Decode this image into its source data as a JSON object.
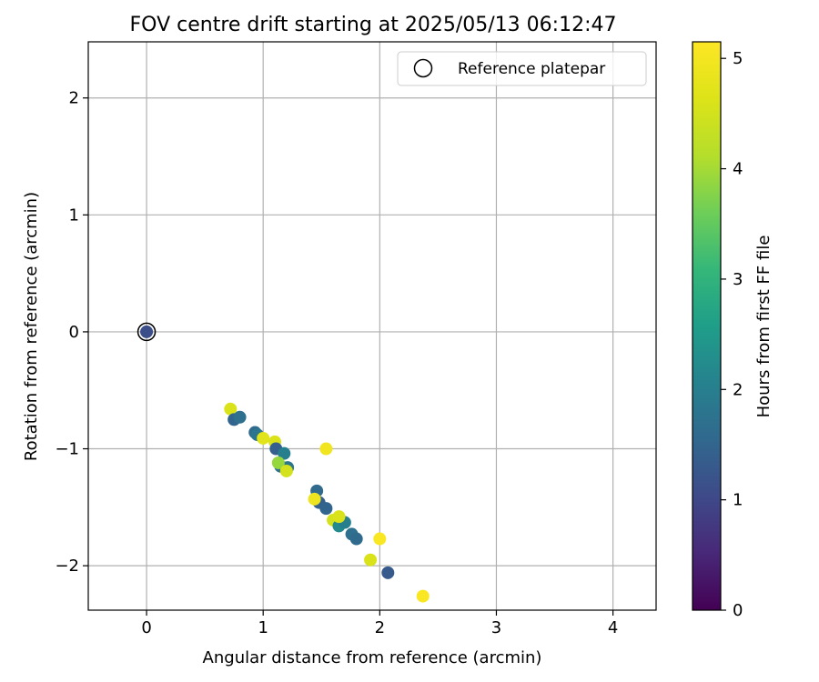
{
  "chart_data": {
    "type": "scatter",
    "title": "FOV centre drift starting at 2025/05/13 06:12:47",
    "xlabel": "Angular distance from reference (arcmin)",
    "ylabel": "Rotation from reference (arcmin)",
    "xlim": [
      -0.5,
      4.37
    ],
    "ylim": [
      -2.38,
      2.48
    ],
    "xticks": [
      0,
      1,
      2,
      3,
      4
    ],
    "yticks": [
      -2,
      -1,
      0,
      1,
      2
    ],
    "xtick_labels": [
      "0",
      "1",
      "2",
      "3",
      "4"
    ],
    "ytick_labels": [
      "−2",
      "−1",
      "0",
      "1",
      "2"
    ],
    "grid": true,
    "legend": {
      "position": "top-right",
      "entries": [
        "Reference platepar"
      ]
    },
    "reference_point": {
      "x": 0,
      "y": 0,
      "label": "Reference platepar"
    },
    "colorbar": {
      "label": "Hours from first FF file",
      "colormap": "viridis",
      "range": [
        0,
        5.15
      ],
      "ticks": [
        0,
        1,
        2,
        3,
        4,
        5
      ],
      "tick_labels": [
        "0",
        "1",
        "2",
        "3",
        "4",
        "5"
      ]
    },
    "points": [
      {
        "x": 0.0,
        "y": 0.0,
        "hours": 1.1
      },
      {
        "x": 0.72,
        "y": -0.66,
        "hours": 4.6
      },
      {
        "x": 0.75,
        "y": -0.75,
        "hours": 1.5
      },
      {
        "x": 0.8,
        "y": -0.73,
        "hours": 1.7
      },
      {
        "x": 0.93,
        "y": -0.86,
        "hours": 1.6
      },
      {
        "x": 0.95,
        "y": -0.88,
        "hours": 1.8
      },
      {
        "x": 1.0,
        "y": -0.91,
        "hours": 4.7
      },
      {
        "x": 1.1,
        "y": -0.94,
        "hours": 4.6
      },
      {
        "x": 1.11,
        "y": -1.0,
        "hours": 1.4
      },
      {
        "x": 1.18,
        "y": -1.04,
        "hours": 2.0
      },
      {
        "x": 1.15,
        "y": -1.15,
        "hours": 1.7
      },
      {
        "x": 1.21,
        "y": -1.16,
        "hours": 1.8
      },
      {
        "x": 1.13,
        "y": -1.12,
        "hours": 3.9
      },
      {
        "x": 1.2,
        "y": -1.19,
        "hours": 4.5
      },
      {
        "x": 1.46,
        "y": -1.36,
        "hours": 1.6
      },
      {
        "x": 1.48,
        "y": -1.46,
        "hours": 1.4
      },
      {
        "x": 1.44,
        "y": -1.43,
        "hours": 4.9
      },
      {
        "x": 1.54,
        "y": -1.51,
        "hours": 1.5
      },
      {
        "x": 1.54,
        "y": -1.0,
        "hours": 4.95
      },
      {
        "x": 1.6,
        "y": -1.61,
        "hours": 4.5
      },
      {
        "x": 1.65,
        "y": -1.66,
        "hours": 2.2
      },
      {
        "x": 1.7,
        "y": -1.63,
        "hours": 2.0
      },
      {
        "x": 1.65,
        "y": -1.58,
        "hours": 4.6
      },
      {
        "x": 1.76,
        "y": -1.73,
        "hours": 1.7
      },
      {
        "x": 1.8,
        "y": -1.77,
        "hours": 1.6
      },
      {
        "x": 2.0,
        "y": -1.77,
        "hours": 5.1
      },
      {
        "x": 1.92,
        "y": -1.95,
        "hours": 4.6
      },
      {
        "x": 2.07,
        "y": -2.06,
        "hours": 1.3
      },
      {
        "x": 2.37,
        "y": -2.26,
        "hours": 5.1
      }
    ]
  }
}
